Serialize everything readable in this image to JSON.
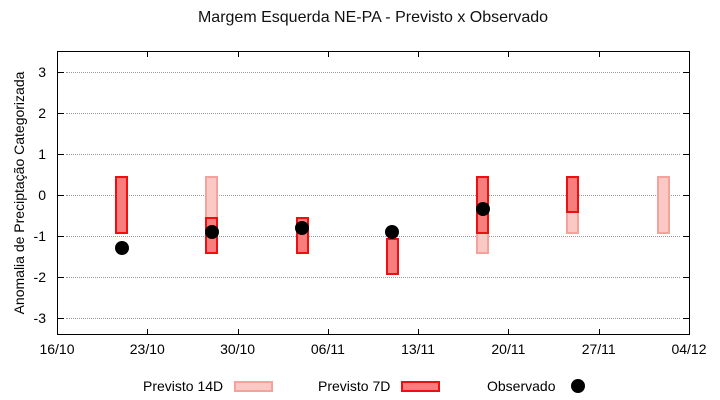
{
  "title": "Margem Esquerda NE-PA - Previsto x Observado",
  "y_axis_label": "Anomalia de Preciptação Categorizada",
  "legend": {
    "previsto14d_label": "Previsto 14D",
    "previsto7d_label": "Previsto 7D",
    "observado_label": "Observado"
  },
  "colors": {
    "previsto14d_fill": "#fbc9c5",
    "previsto14d_border": "#f5a29c",
    "previsto7d_fill": "#f87e7e",
    "previsto7d_border": "#ee1010",
    "observado": "#000000",
    "grid": "#9a9a9a",
    "axis": "#000000"
  },
  "chart_data": {
    "type": "bar",
    "subtype": "floating-range-bars-with-scatter",
    "title": "Margem Esquerda NE-PA - Previsto x Observado",
    "xlabel": "",
    "ylabel": "Anomalia de Preciptação Categorizada",
    "x_axis": {
      "tick_labels": [
        "16/10",
        "23/10",
        "30/10",
        "06/11",
        "13/11",
        "20/11",
        "27/11",
        "04/12"
      ],
      "tick_days": [
        0,
        7,
        14,
        21,
        28,
        35,
        42,
        49
      ],
      "range_days": [
        0,
        49
      ]
    },
    "y_axis": {
      "tick_labels": [
        "3",
        "2",
        "1",
        "0",
        "-1",
        "-2",
        "-3"
      ],
      "ticks": [
        3,
        2,
        1,
        0,
        -1,
        -2,
        -3
      ],
      "range": [
        -3.4,
        3.5
      ]
    },
    "grid": {
      "horizontal_dotted_lines_at": [
        3,
        2,
        1,
        0,
        -1,
        -2,
        -3
      ]
    },
    "legend_position": "bottom-center",
    "series": [
      {
        "name": "Previsto 14D",
        "type": "floating-bar",
        "fill": "#fbc9c5",
        "border": "#f5a29c",
        "points": [
          {
            "date": "28/10",
            "day": 12,
            "top": 0.45,
            "bottom": -1.45
          },
          {
            "date": "18/11",
            "day": 33,
            "top": 0.45,
            "bottom": -1.45
          },
          {
            "date": "25/11",
            "day": 40,
            "top": 0.45,
            "bottom": -0.95
          },
          {
            "date": "02/12",
            "day": 47,
            "top": 0.45,
            "bottom": -0.95
          }
        ]
      },
      {
        "name": "Previsto 7D",
        "type": "floating-bar",
        "fill": "#f87e7e",
        "border": "#ee1010",
        "points": [
          {
            "date": "21/10",
            "day": 5,
            "top": 0.45,
            "bottom": -0.95
          },
          {
            "date": "28/10",
            "day": 12,
            "top": -0.55,
            "bottom": -1.45
          },
          {
            "date": "04/11",
            "day": 19,
            "top": -0.55,
            "bottom": -1.45
          },
          {
            "date": "11/11",
            "day": 26,
            "top": -1.05,
            "bottom": -1.95
          },
          {
            "date": "18/11",
            "day": 33,
            "top": 0.45,
            "bottom": -0.95
          },
          {
            "date": "25/11",
            "day": 40,
            "top": 0.45,
            "bottom": -0.45
          }
        ]
      },
      {
        "name": "Observado",
        "type": "scatter",
        "color": "#000000",
        "points": [
          {
            "date": "21/10",
            "day": 5,
            "value": -1.3
          },
          {
            "date": "28/10",
            "day": 12,
            "value": -0.9
          },
          {
            "date": "04/11",
            "day": 19,
            "value": -0.8
          },
          {
            "date": "11/11",
            "day": 26,
            "value": -0.9
          },
          {
            "date": "18/11",
            "day": 33,
            "value": -0.35
          }
        ]
      }
    ]
  }
}
